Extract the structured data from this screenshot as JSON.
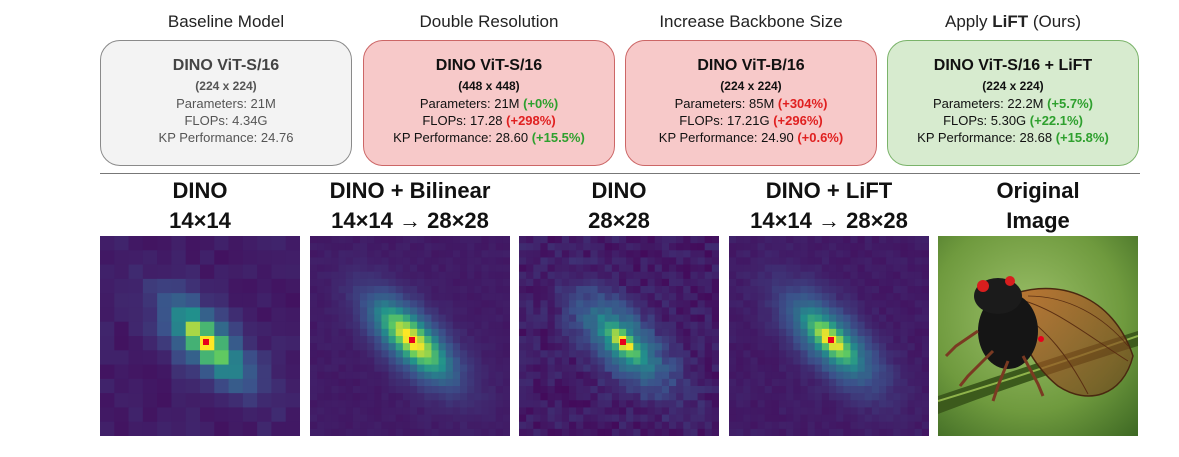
{
  "cards": [
    {
      "caption": "Baseline Model",
      "name": "DINO ViT-S/16",
      "res": "(224 x 224)",
      "params_label": "Parameters: 21M",
      "params_delta": "",
      "flops_label": "FLOPs: 4.34G",
      "flops_delta": "",
      "kp_label": "KP Performance: 24.76",
      "kp_delta": ""
    },
    {
      "caption": "Double Resolution",
      "name": "DINO ViT-S/16",
      "res": "(448 x 448)",
      "params_label": "Parameters: 21M ",
      "params_delta": "(+0%)",
      "flops_label": "FLOPs: 17.28 ",
      "flops_delta": "(+298%)",
      "kp_label": "KP Performance: 28.60 ",
      "kp_delta": "(+15.5%)"
    },
    {
      "caption": "Increase Backbone Size",
      "name": "DINO ViT-B/16",
      "res": "(224 x 224)",
      "params_label": "Parameters: 85M ",
      "params_delta": "(+304%)",
      "flops_label": "FLOPs: 17.21G ",
      "flops_delta": "(+296%)",
      "kp_label": "KP Performance: 24.90 ",
      "kp_delta": "(+0.6%)"
    },
    {
      "caption_prefix": "Apply ",
      "caption_bold": "LiFT",
      "caption_suffix": " (Ours)",
      "name": "DINO ViT-S/16 + LiFT",
      "res": "(224 x 224)",
      "params_label": "Parameters: 22.2M ",
      "params_delta": "(+5.7%)",
      "flops_label": "FLOPs: 5.30G ",
      "flops_delta": "(+22.1%)",
      "kp_label": "KP Performance: 28.68 ",
      "kp_delta": "(+15.8%)"
    }
  ],
  "columns": [
    {
      "line1": "DINO",
      "line2": "14×14"
    },
    {
      "line1": "DINO + Bilinear",
      "line2": "14×14 → 28×28"
    },
    {
      "line1": "DINO",
      "line2": "28×28"
    },
    {
      "line1": "DINO + LiFT",
      "line2": "14×14 → 28×28"
    },
    {
      "line1": "Original",
      "line2": "Image"
    }
  ],
  "colors": {
    "positive_delta": "#2ea02e",
    "negative_delta": "#e02020",
    "heatmap_low": "#3b0f70",
    "heatmap_high": "#fde725",
    "query_point": "#e8001c"
  }
}
